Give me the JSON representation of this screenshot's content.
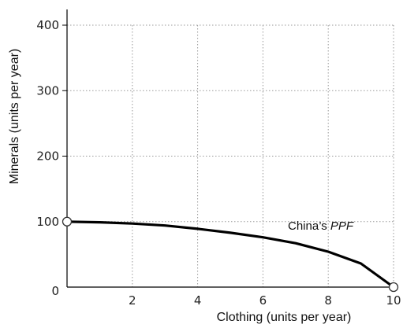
{
  "chart_data": {
    "type": "line",
    "xlabel": "Clothing (units per year)",
    "ylabel": "Minerals (units per year)",
    "xlim": [
      0,
      10
    ],
    "ylim": [
      0,
      400
    ],
    "x_ticks": [
      2,
      4,
      6,
      8,
      10
    ],
    "y_ticks": [
      0,
      100,
      200,
      300,
      400
    ],
    "grid": true,
    "series": [
      {
        "name": "China’s PPF",
        "x": [
          0,
          1,
          2,
          3,
          4,
          5,
          6,
          7,
          8,
          9,
          10
        ],
        "y": [
          100,
          99,
          97,
          94,
          89,
          83,
          76,
          67,
          54,
          36,
          0
        ]
      }
    ],
    "endpoints": [
      {
        "x": 0,
        "y": 100
      },
      {
        "x": 10,
        "y": 0
      }
    ],
    "annotations": [
      {
        "prefix": "China’s ",
        "italic": "PPF"
      }
    ],
    "colors": {
      "line": "#000000",
      "grid": "#999999",
      "axis": "#000000",
      "marker_fill": "#ffffff"
    }
  }
}
